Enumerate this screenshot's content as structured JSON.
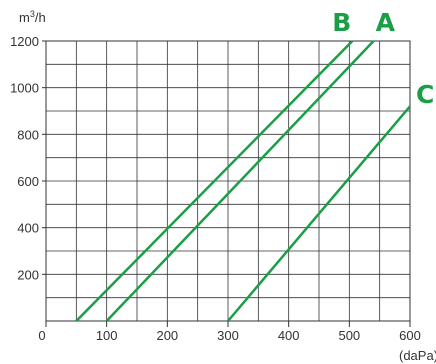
{
  "chart_data": {
    "type": "line",
    "title": "",
    "xlabel": "(daPa)",
    "ylabel": "m³/h",
    "xlim": [
      0,
      600
    ],
    "ylim": [
      0,
      1200
    ],
    "x_ticks": [
      "0",
      "100",
      "200",
      "300",
      "400",
      "500",
      "600"
    ],
    "y_ticks": [
      "200",
      "400",
      "600",
      "800",
      "1000",
      "1200"
    ],
    "grid": true,
    "line_color": "#1a9e47",
    "series": [
      {
        "name": "A",
        "x": [
          100,
          540
        ],
        "y": [
          0,
          1200
        ]
      },
      {
        "name": "B",
        "x": [
          50,
          505
        ],
        "y": [
          0,
          1200
        ]
      },
      {
        "name": "C",
        "x": [
          300,
          600
        ],
        "y": [
          0,
          920
        ]
      }
    ]
  }
}
